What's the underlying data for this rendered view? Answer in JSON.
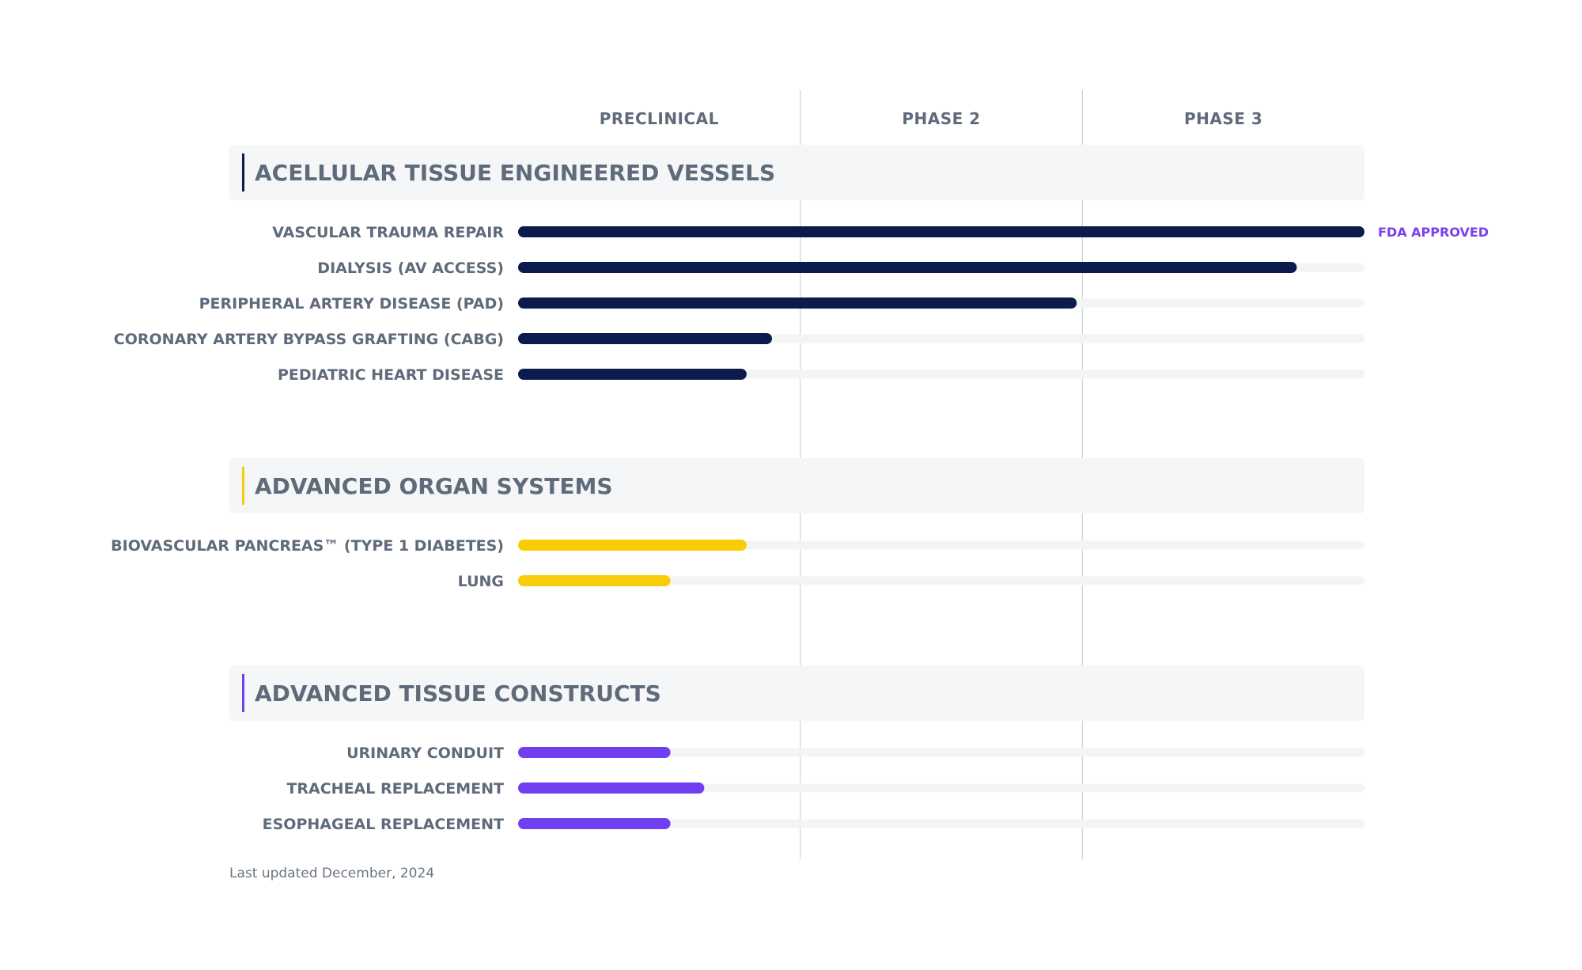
{
  "chart_data": {
    "type": "bar",
    "orientation": "horizontal",
    "stages": [
      "PRECLINICAL",
      "PHASE 2",
      "PHASE 3"
    ],
    "value_range": [
      0,
      3
    ],
    "groups": [
      {
        "title": "ACELLULAR TISSUE ENGINEERED VESSELS",
        "color": "#0c1b4d",
        "programs": [
          {
            "label": "VASCULAR TRAUMA REPAIR",
            "progress": 3.0,
            "status": "FDA APPROVED"
          },
          {
            "label": "DIALYSIS (AV ACCESS)",
            "progress": 2.76
          },
          {
            "label": "PERIPHERAL ARTERY DISEASE (PAD)",
            "progress": 1.98
          },
          {
            "label": "CORONARY ARTERY BYPASS GRAFTING (CABG)",
            "progress": 0.9
          },
          {
            "label": "PEDIATRIC HEART DISEASE",
            "progress": 0.81
          }
        ]
      },
      {
        "title": "ADVANCED ORGAN SYSTEMS",
        "color": "#f9cd06",
        "programs": [
          {
            "label": "BIOVASCULAR PANCREAS™ (TYPE 1 DIABETES)",
            "progress": 0.81
          },
          {
            "label": "LUNG",
            "progress": 0.54
          }
        ]
      },
      {
        "title": "ADVANCED TISSUE CONSTRUCTS",
        "color": "#7040f0",
        "programs": [
          {
            "label": "URINARY CONDUIT",
            "progress": 0.54
          },
          {
            "label": "TRACHEAL REPLACEMENT",
            "progress": 0.66
          },
          {
            "label": "ESOPHAGEAL REPLACEMENT",
            "progress": 0.54
          }
        ]
      }
    ],
    "colors": {
      "track": "#f3f4f6",
      "group_band": "#f4f6f7",
      "divider": "#cfd3d8",
      "status": "#7b3fef"
    }
  },
  "footnote": "Last updated December, 2024"
}
